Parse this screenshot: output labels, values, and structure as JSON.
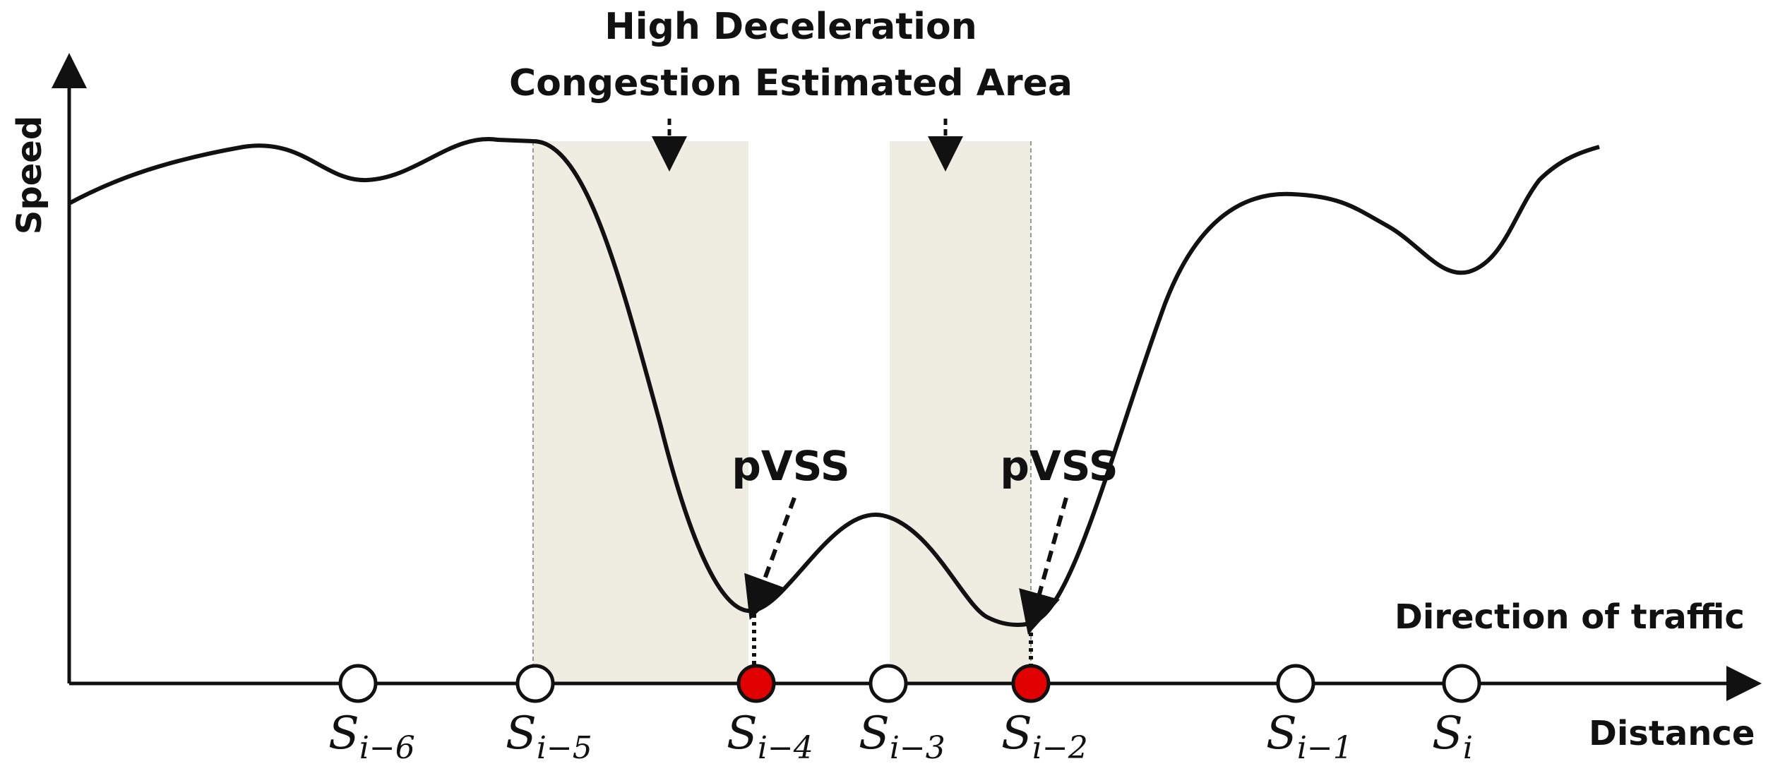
{
  "title": {
    "line1": "High Deceleration",
    "line2": "Congestion Estimated Area"
  },
  "axes": {
    "y_label": "Speed",
    "x_label": "Distance",
    "direction_label": "Direction of traffic"
  },
  "pvss_label": "pVSS",
  "stations": [
    {
      "base": "S",
      "sub": "i−6",
      "kind": "open"
    },
    {
      "base": "S",
      "sub": "i−5",
      "kind": "open"
    },
    {
      "base": "S",
      "sub": "i−4",
      "kind": "pvss"
    },
    {
      "base": "S",
      "sub": "i−3",
      "kind": "open"
    },
    {
      "base": "S",
      "sub": "i−2",
      "kind": "pvss"
    },
    {
      "base": "S",
      "sub": "i−1",
      "kind": "open"
    },
    {
      "base": "S",
      "sub": "i",
      "kind": "open"
    }
  ],
  "colors": {
    "shade": "#efece1",
    "pvss_marker": "#e00000",
    "open_marker": "#ffffff",
    "line": "#111111"
  }
}
